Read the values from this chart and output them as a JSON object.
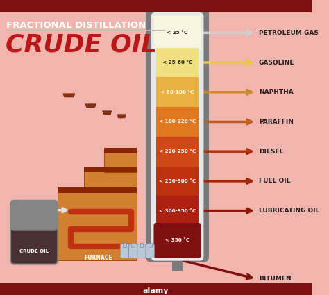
{
  "title_line1": "FRACTIONAL DISTILLATION",
  "title_line2": "CRUDE OIL",
  "background_color": "#f2b5ad",
  "header_bar_color": "#7a1010",
  "footer_bar_color": "#7a1010",
  "title1_color": "#ffffff",
  "title2_color": "#b81818",
  "column_labels": [
    "< 25 °C",
    "< 25-60 °C",
    "< 60-180 °C",
    "< 180-220 °C",
    "< 220-250 °C",
    "< 250-300 °C",
    "< 300-350 °C",
    "< 350 °C"
  ],
  "products": [
    "PETROLEUM GAS",
    "GASOLINE",
    "NAPHTHA",
    "PARAFFIN",
    "DIESEL",
    "FUEL OIL",
    "LUBRICATING OIL",
    "BITUMEN"
  ],
  "arrow_colors": [
    "#d0d0d0",
    "#e8c84a",
    "#d08828",
    "#c06018",
    "#b03010",
    "#a02808",
    "#901808",
    "#801010"
  ],
  "column_fill_colors": [
    "#f8f5e0",
    "#f0e080",
    "#e8b040",
    "#e07820",
    "#d04818",
    "#c03010",
    "#b02010",
    "#801010"
  ],
  "column_outer_color": "#7a7a7a",
  "column_inner_bg": "#e8e8e8",
  "furnace_body_color": "#d08030",
  "furnace_roof_color": "#c07028",
  "furnace_dark": "#8b2500",
  "chimney_color": "#8b3010",
  "chimney_dark": "#5a1a00",
  "crude_tank_gray": "#858585",
  "crude_tank_dark": "#4a3030",
  "pipe_white": "#e0e0e0",
  "coil_color": "#c03010",
  "label_dark": "#222222",
  "label_light": "#ffffff"
}
